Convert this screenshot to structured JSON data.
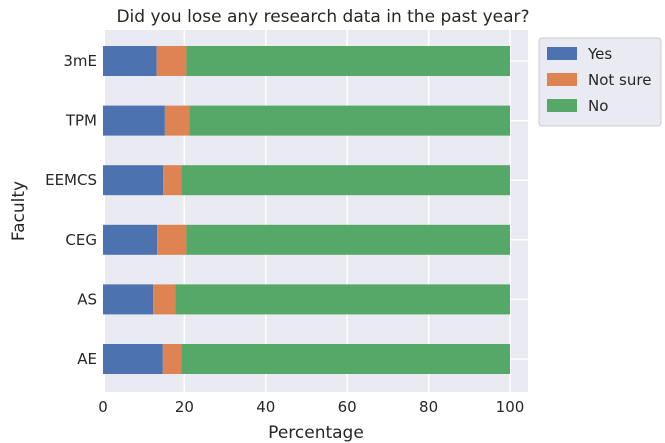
{
  "chart_data": {
    "type": "bar",
    "orientation": "horizontal",
    "stacked": true,
    "title": "Did you lose any research data in the past year?",
    "xlabel": "Percentage",
    "ylabel": "Faculty",
    "xlim": [
      0,
      100
    ],
    "xticks": [
      0,
      20,
      40,
      60,
      80,
      100
    ],
    "categories": [
      "3mE",
      "TPM",
      "EEMCS",
      "CEG",
      "AS",
      "AE"
    ],
    "series": [
      {
        "name": "Yes",
        "color": "#4c72b0",
        "values": [
          13.2,
          15.2,
          14.8,
          13.3,
          12.3,
          14.7
        ]
      },
      {
        "name": "Not sure",
        "color": "#dd8452",
        "values": [
          7.3,
          6.0,
          4.5,
          7.2,
          5.5,
          4.5
        ]
      },
      {
        "name": "No",
        "color": "#55a868",
        "values": [
          79.5,
          78.8,
          80.7,
          79.5,
          82.2,
          80.8
        ]
      }
    ],
    "grid": true,
    "legend_position": "right"
  },
  "colors": {
    "plot_background": "#eaeaf2",
    "gridline": "#ffffff",
    "legend_background": "#eaeaf2"
  }
}
